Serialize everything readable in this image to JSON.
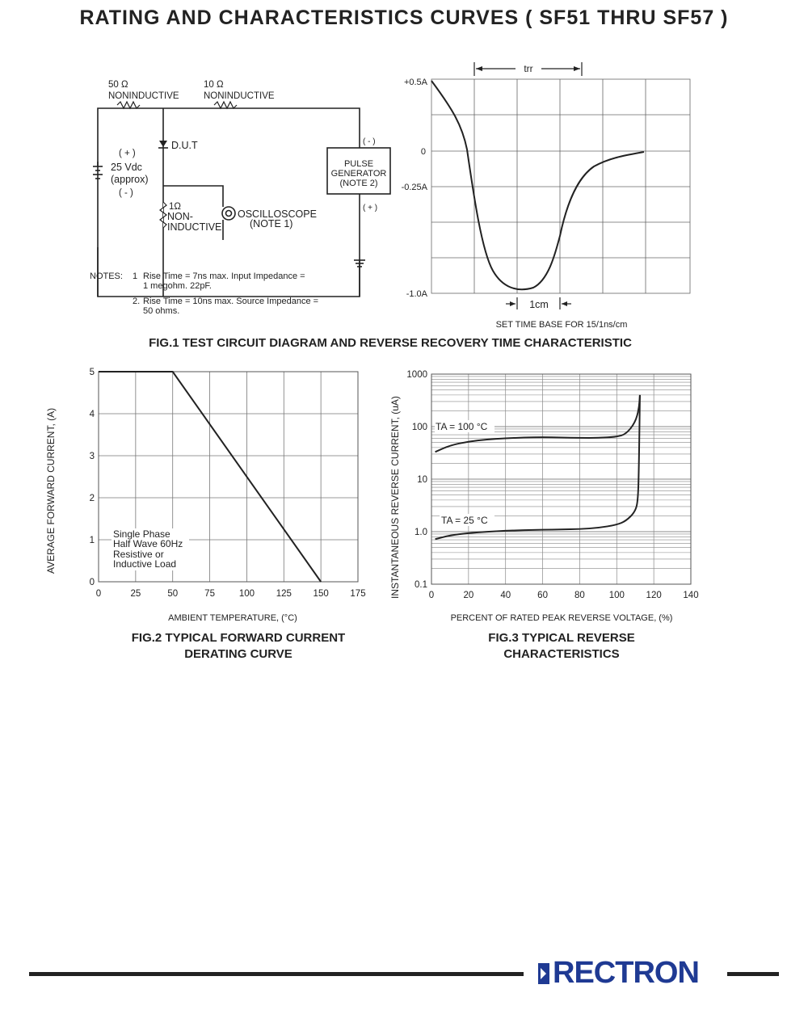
{
  "title": "RATING AND CHARACTERISTICS CURVES ( SF51 THRU SF57 )",
  "fig1": {
    "caption": "FIG.1 TEST CIRCUIT DIAGRAM AND REVERSE RECOVERY TIME CHARACTERISTIC",
    "circuit": {
      "r1_value": "50 Ω",
      "r1_type": "NONINDUCTIVE",
      "r2_value": "10 Ω",
      "r2_type": "NONINDUCTIVE",
      "dut": "D.U.T",
      "battery_plus": "( + )",
      "battery_voltage": "25 Vdc",
      "battery_approx": "(approx)",
      "battery_minus": "( - )",
      "r3_value": "1Ω",
      "r3_type_1": "NON-",
      "r3_type_2": "INDUCTIVE",
      "scope_1": "OSCILLOSCOPE",
      "scope_2": "(NOTE 1)",
      "pulse_1": "PULSE",
      "pulse_2": "GENERATOR",
      "pulse_3": "(NOTE 2)",
      "pulse_minus": "( - )",
      "pulse_plus": "( + )"
    },
    "notes": {
      "label": "NOTES:",
      "n1_num": "1",
      "n1_line1": "Rise Time = 7ns max. Input Impedance =",
      "n1_line2": "1 megohm. 22pF.",
      "n2_num": "2.",
      "n2_line1": "Rise Time = 10ns max. Source Impedance =",
      "n2_line2": "50 ohms."
    },
    "waveform": {
      "trr": "trr",
      "y_labels": [
        "+0.5A",
        "0",
        "-0.25A",
        "-1.0A"
      ],
      "scale_label": "1cm",
      "timebase": "SET TIME BASE FOR 15/1ns/cm"
    }
  },
  "fig2": {
    "caption_line1": "FIG.2 TYPICAL FORWARD CURRENT",
    "caption_line2": "DERATING CURVE",
    "ylabel": "AVERAGE FORWARD CURRENT, (A)",
    "xlabel": "AMBIENT TEMPERATURE, (°C)",
    "annotation": [
      "Single Phase",
      "Half Wave 60Hz",
      "Resistive or",
      "Inductive Load"
    ],
    "chart_data": {
      "type": "line",
      "xlabel": "AMBIENT TEMPERATURE, (°C)",
      "ylabel": "AVERAGE FORWARD CURRENT, (A)",
      "xlim": [
        0,
        175
      ],
      "ylim": [
        0,
        5
      ],
      "x_ticks": [
        0,
        25,
        50,
        75,
        100,
        125,
        150,
        175
      ],
      "y_ticks": [
        0,
        1,
        2,
        3,
        4,
        5
      ],
      "grid": true,
      "series": [
        {
          "x": [
            0,
            50,
            150
          ],
          "y": [
            5,
            5,
            0
          ]
        }
      ]
    }
  },
  "fig3": {
    "caption_line1": "FIG.3 TYPICAL REVERSE",
    "caption_line2": "CHARACTERISTICS",
    "ylabel": "INSTANTANEOUS REVERSE CURRENT, (uA)",
    "xlabel": "PERCENT OF RATED PEAK REVERSE VOLTAGE, (%)",
    "chart_data": {
      "type": "line",
      "xlabel": "PERCENT OF RATED PEAK REVERSE VOLTAGE, (%)",
      "ylabel": "INSTANTANEOUS REVERSE CURRENT, (uA)",
      "y_scale": "log",
      "xlim": [
        0,
        140
      ],
      "ylim": [
        0.1,
        1000
      ],
      "x_ticks": [
        0,
        20,
        40,
        60,
        80,
        100,
        120,
        140
      ],
      "y_ticks": [
        "0.1",
        "1.0",
        "10",
        "100",
        "1000"
      ],
      "grid": true,
      "series": [
        {
          "name": "TA = 100 °C",
          "x": [
            2,
            10,
            20,
            30,
            40,
            50,
            60,
            70,
            80,
            90,
            100,
            105,
            110,
            112,
            112.5
          ],
          "y": [
            33,
            44,
            52,
            57,
            60,
            62,
            63,
            62,
            61,
            61,
            64,
            72,
            120,
            220,
            400
          ]
        },
        {
          "name": "TA = 25 °C",
          "x": [
            2,
            10,
            20,
            30,
            40,
            50,
            60,
            70,
            80,
            90,
            100,
            105,
            110,
            111.5,
            112,
            112.5
          ],
          "y": [
            0.72,
            0.85,
            0.94,
            1.0,
            1.04,
            1.07,
            1.09,
            1.1,
            1.12,
            1.18,
            1.35,
            1.6,
            2.4,
            4,
            20,
            400
          ]
        }
      ]
    }
  },
  "footer": {
    "brand": "RECTRON"
  }
}
